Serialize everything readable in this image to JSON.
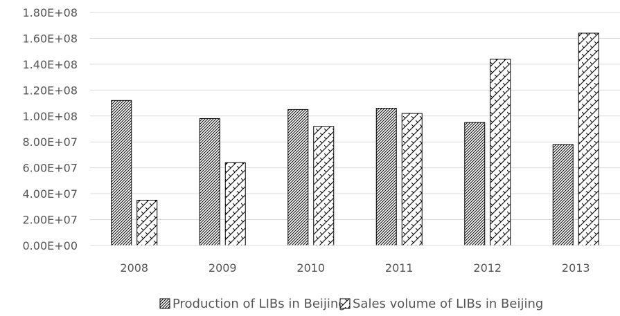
{
  "chart_data": {
    "type": "bar",
    "categories": [
      "2008",
      "2009",
      "2010",
      "2011",
      "2012",
      "2013"
    ],
    "series": [
      {
        "name": "Production of LIBs in Beijing",
        "values": [
          112000000,
          98000000,
          105000000,
          106000000,
          95000000,
          78000000
        ],
        "pattern": "diagonal-dense",
        "color": "#000000"
      },
      {
        "name": "Sales volume of LIBs in Beijing",
        "values": [
          35000000,
          64000000,
          92000000,
          102000000,
          144000000,
          164000000
        ],
        "pattern": "crosshatch-zigzag",
        "color": "#000000"
      }
    ],
    "ylim": [
      0,
      180000000
    ],
    "yticks": [
      {
        "value": 0,
        "label": "0.00E+00"
      },
      {
        "value": 20000000,
        "label": "2.00E+07"
      },
      {
        "value": 40000000,
        "label": "4.00E+07"
      },
      {
        "value": 60000000,
        "label": "6.00E+07"
      },
      {
        "value": 80000000,
        "label": "8.00E+07"
      },
      {
        "value": 100000000,
        "label": "1.00E+08"
      },
      {
        "value": 120000000,
        "label": "1.20E+08"
      },
      {
        "value": 140000000,
        "label": "1.40E+08"
      },
      {
        "value": 160000000,
        "label": "1.60E+08"
      },
      {
        "value": 180000000,
        "label": "1.80E+08"
      }
    ],
    "grid": true,
    "legend_position": "bottom"
  }
}
